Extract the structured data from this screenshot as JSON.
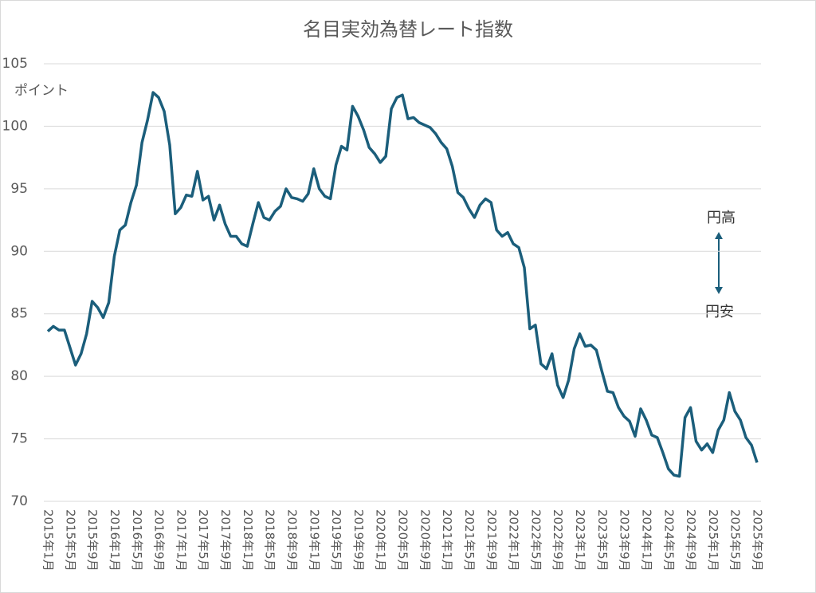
{
  "chart_data": {
    "type": "line",
    "title": "名目実効為替レート指数",
    "y_label": "ポイント",
    "annotations": [
      "円高",
      "円安"
    ],
    "categories": [
      "2015年1月",
      null,
      null,
      null,
      "2015年5月",
      null,
      null,
      null,
      "2015年9月",
      null,
      null,
      null,
      "2016年1月",
      null,
      null,
      null,
      "2016年5月",
      null,
      null,
      null,
      "2016年9月",
      null,
      null,
      null,
      "2017年1月",
      null,
      null,
      null,
      "2017年5月",
      null,
      null,
      null,
      "2017年9月",
      null,
      null,
      null,
      "2018年1月",
      null,
      null,
      null,
      "2018年5月",
      null,
      null,
      null,
      "2018年9月",
      null,
      null,
      null,
      "2019年1月",
      null,
      null,
      null,
      "2019年5月",
      null,
      null,
      null,
      "2019年9月",
      null,
      null,
      null,
      "2020年1月",
      null,
      null,
      null,
      "2020年5月",
      null,
      null,
      null,
      "2020年9月",
      null,
      null,
      null,
      "2021年1月",
      null,
      null,
      null,
      "2021年5月",
      null,
      null,
      null,
      "2021年9月",
      null,
      null,
      null,
      "2022年1月",
      null,
      null,
      null,
      "2022年5月",
      null,
      null,
      null,
      "2022年9月",
      null,
      null,
      null,
      "2023年1月",
      null,
      null,
      null,
      "2023年5月",
      null,
      null,
      null,
      "2023年9月",
      null,
      null,
      null,
      "2024年1月",
      null,
      null,
      null,
      "2024年5月",
      null,
      null,
      null,
      "2024年9月",
      null,
      null,
      null,
      "2025年1月",
      null,
      null,
      null,
      "2025年5月",
      null,
      null,
      null,
      "2025年9月"
    ],
    "series": [
      {
        "name": "名目実効為替レート指数",
        "color": "#1b5e7b",
        "values": [
          83.6,
          84.0,
          83.7,
          83.7,
          82.3,
          80.9,
          81.8,
          83.4,
          86.0,
          85.5,
          84.7,
          85.9,
          89.6,
          91.7,
          92.1,
          93.9,
          95.3,
          98.7,
          100.5,
          102.7,
          102.3,
          101.2,
          98.5,
          93.0,
          93.5,
          94.5,
          94.4,
          96.4,
          94.1,
          94.4,
          92.5,
          93.7,
          92.2,
          91.2,
          91.2,
          90.6,
          90.4,
          92.2,
          93.9,
          92.7,
          92.5,
          93.2,
          93.6,
          95.0,
          94.3,
          94.2,
          94.0,
          94.6,
          96.6,
          95.0,
          94.4,
          94.2,
          96.9,
          98.4,
          98.1,
          101.6,
          100.8,
          99.7,
          98.3,
          97.8,
          97.1,
          97.6,
          101.4,
          102.3,
          102.5,
          100.6,
          100.7,
          100.3,
          100.1,
          99.9,
          99.4,
          98.7,
          98.2,
          96.8,
          94.7,
          94.3,
          93.4,
          92.7,
          93.7,
          94.2,
          93.9,
          91.7,
          91.2,
          91.5,
          90.6,
          90.3,
          88.7,
          83.8,
          84.1,
          81.0,
          80.6,
          81.8,
          79.3,
          78.3,
          79.7,
          82.2,
          83.4,
          82.4,
          82.5,
          82.1,
          80.4,
          78.8,
          78.7,
          77.5,
          76.8,
          76.4,
          75.2,
          77.4,
          76.5,
          75.3,
          75.1,
          73.9,
          72.6,
          72.1,
          72.0,
          76.7,
          77.5,
          74.8,
          74.1,
          74.6,
          73.9,
          75.7,
          76.5,
          78.7,
          77.2,
          76.5,
          75.1,
          74.5,
          73.1
        ]
      }
    ],
    "ylim": [
      70,
      105
    ],
    "yticks": [
      70,
      75,
      80,
      85,
      90,
      95,
      100,
      105
    ],
    "grid": true
  }
}
